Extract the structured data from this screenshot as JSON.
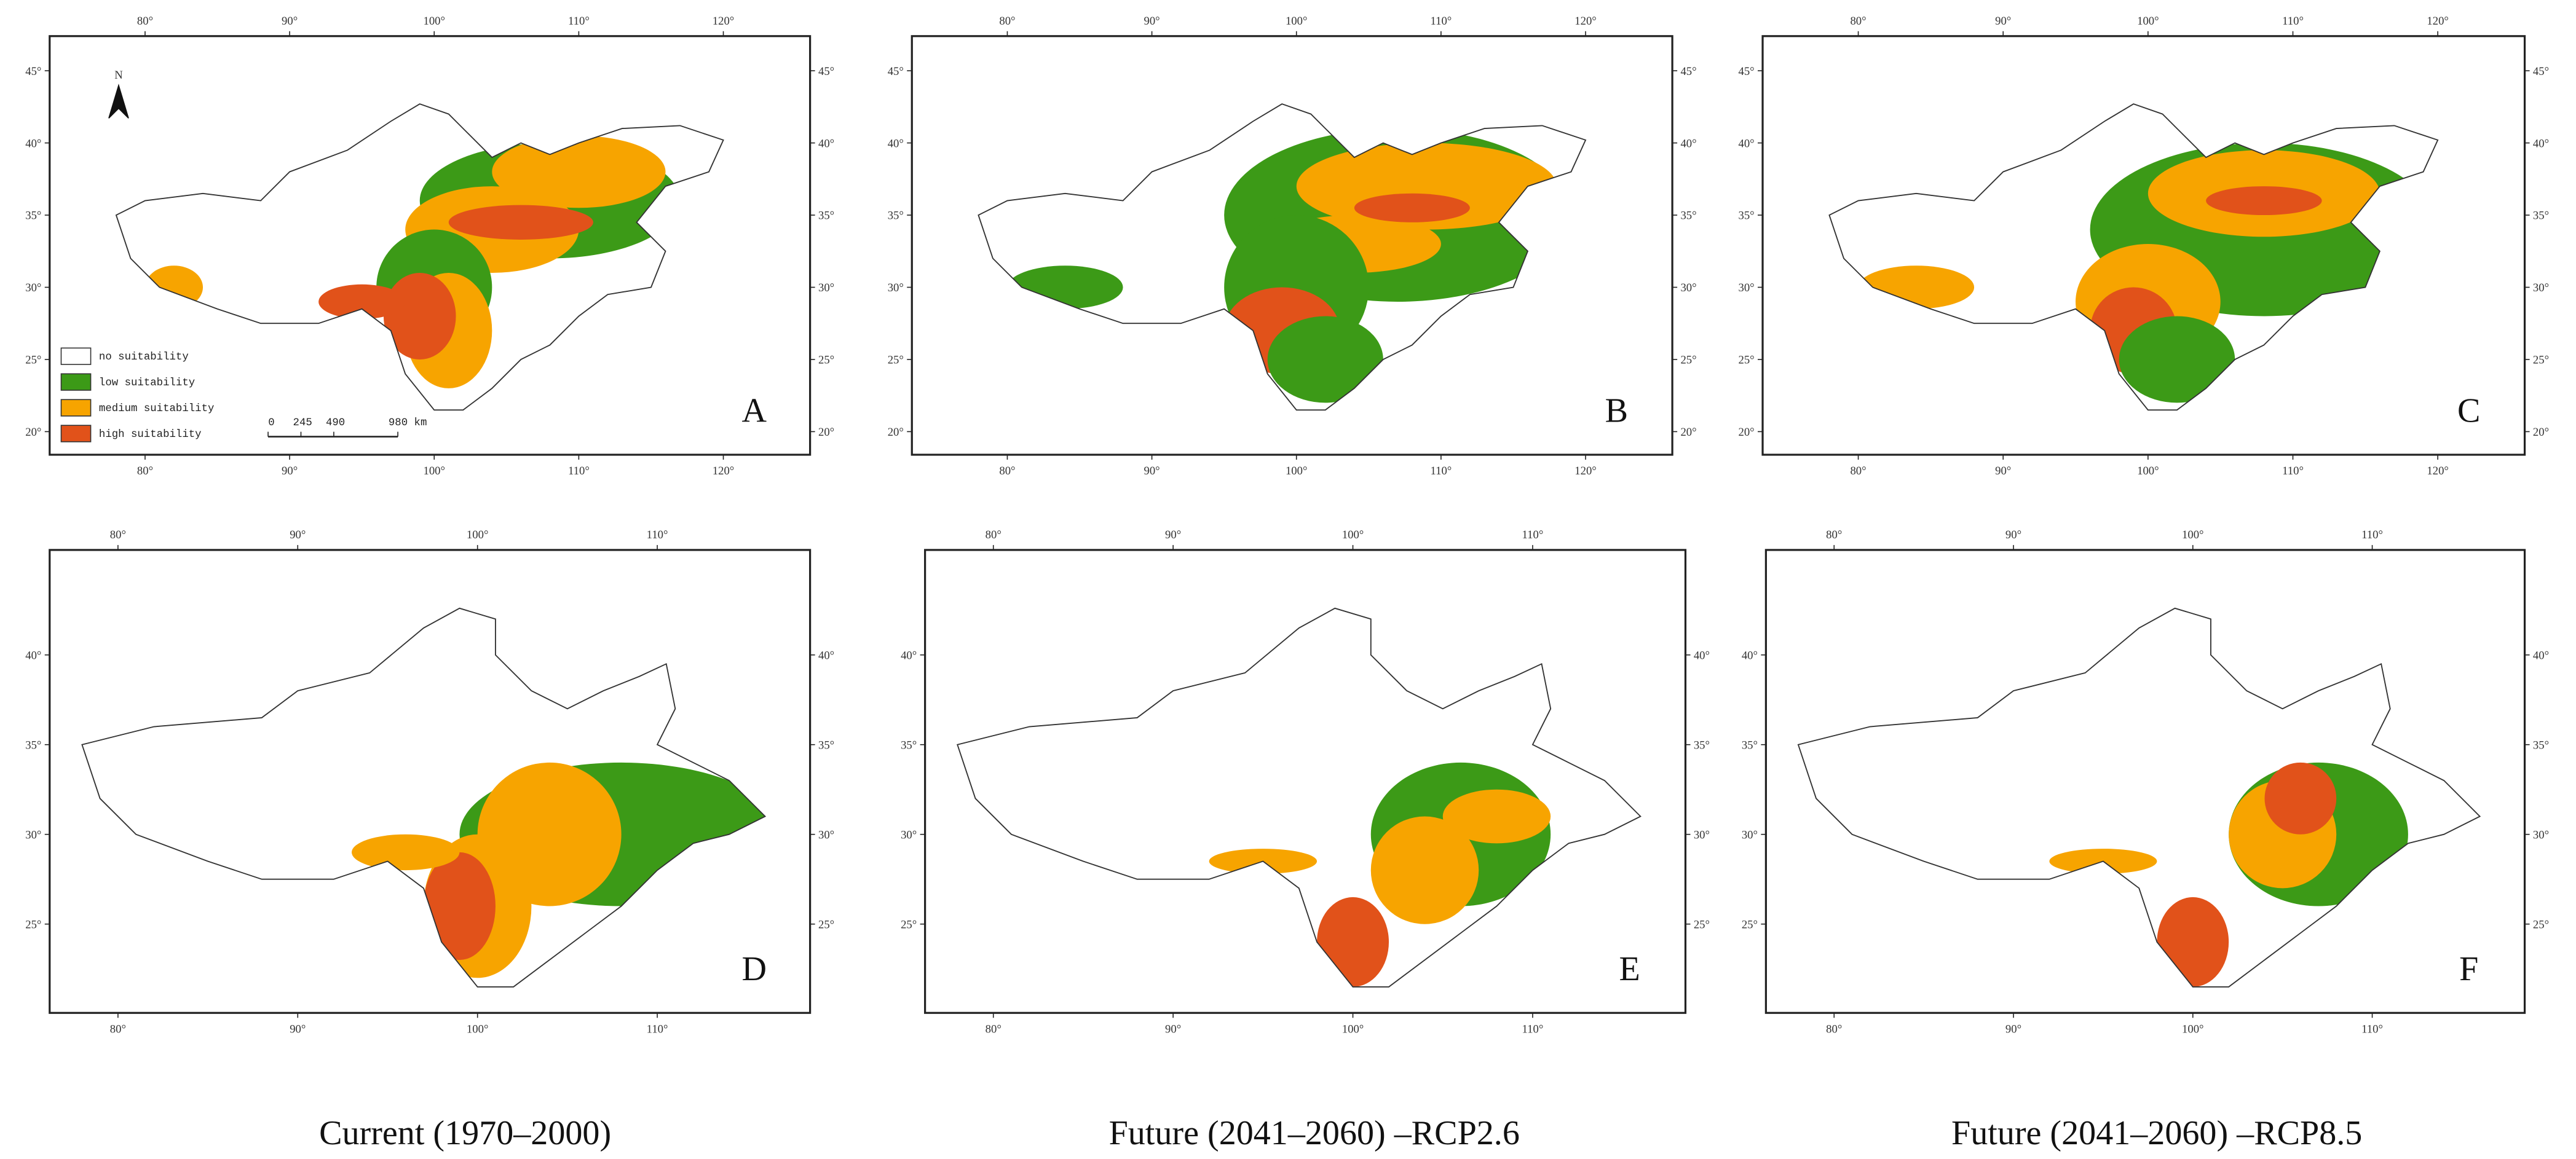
{
  "panels": [
    {
      "letter": "A",
      "xlim": [
        73.4,
        126
      ],
      "ylim": [
        18.4,
        47.4
      ],
      "lon_ticks": [
        {
          "value": 80,
          "label": "80°"
        },
        {
          "value": 90,
          "label": "90°"
        },
        {
          "value": 100,
          "label": "100°"
        },
        {
          "value": 110,
          "label": "110°"
        },
        {
          "value": 120,
          "label": "120°"
        }
      ],
      "lat_ticks": [
        {
          "value": 20,
          "label": "20°"
        },
        {
          "value": 25,
          "label": "25°"
        },
        {
          "value": 30,
          "label": "30°"
        },
        {
          "value": 35,
          "label": "35°"
        },
        {
          "value": 40,
          "label": "40°"
        },
        {
          "value": 45,
          "label": "45°"
        }
      ]
    },
    {
      "letter": "B",
      "xlim": [
        73.4,
        126
      ],
      "ylim": [
        18.4,
        47.4
      ],
      "lon_ticks": [
        {
          "value": 80,
          "label": "80°"
        },
        {
          "value": 90,
          "label": "90°"
        },
        {
          "value": 100,
          "label": "100°"
        },
        {
          "value": 110,
          "label": "110°"
        },
        {
          "value": 120,
          "label": "120°"
        }
      ],
      "lat_ticks": [
        {
          "value": 20,
          "label": "20°"
        },
        {
          "value": 25,
          "label": "25°"
        },
        {
          "value": 30,
          "label": "30°"
        },
        {
          "value": 35,
          "label": "35°"
        },
        {
          "value": 40,
          "label": "40°"
        },
        {
          "value": 45,
          "label": "45°"
        }
      ]
    },
    {
      "letter": "C",
      "xlim": [
        73.4,
        126
      ],
      "ylim": [
        18.4,
        47.4
      ],
      "lon_ticks": [
        {
          "value": 80,
          "label": "80°"
        },
        {
          "value": 90,
          "label": "90°"
        },
        {
          "value": 100,
          "label": "100°"
        },
        {
          "value": 110,
          "label": "110°"
        },
        {
          "value": 120,
          "label": "120°"
        }
      ],
      "lat_ticks": [
        {
          "value": 20,
          "label": "20°"
        },
        {
          "value": 25,
          "label": "25°"
        },
        {
          "value": 30,
          "label": "30°"
        },
        {
          "value": 35,
          "label": "35°"
        },
        {
          "value": 40,
          "label": "40°"
        },
        {
          "value": 45,
          "label": "45°"
        }
      ]
    },
    {
      "letter": "D",
      "xlim": [
        76.2,
        118.5
      ],
      "ylim": [
        20.05,
        45.85
      ],
      "lon_ticks": [
        {
          "value": 80,
          "label": "80°"
        },
        {
          "value": 90,
          "label": "90°"
        },
        {
          "value": 100,
          "label": "100°"
        },
        {
          "value": 110,
          "label": "110°"
        }
      ],
      "lat_ticks": [
        {
          "value": 25,
          "label": "25°"
        },
        {
          "value": 30,
          "label": "30°"
        },
        {
          "value": 35,
          "label": "35°"
        },
        {
          "value": 40,
          "label": "40°"
        }
      ]
    },
    {
      "letter": "E",
      "xlim": [
        76.2,
        118.5
      ],
      "ylim": [
        20.05,
        45.85
      ],
      "lon_ticks": [
        {
          "value": 80,
          "label": "80°"
        },
        {
          "value": 90,
          "label": "90°"
        },
        {
          "value": 100,
          "label": "100°"
        },
        {
          "value": 110,
          "label": "110°"
        }
      ],
      "lat_ticks": [
        {
          "value": 25,
          "label": "25°"
        },
        {
          "value": 30,
          "label": "30°"
        },
        {
          "value": 35,
          "label": "35°"
        },
        {
          "value": 40,
          "label": "40°"
        }
      ]
    },
    {
      "letter": "F",
      "xlim": [
        76.2,
        118.5
      ],
      "ylim": [
        20.05,
        45.85
      ],
      "lon_ticks": [
        {
          "value": 80,
          "label": "80°"
        },
        {
          "value": 90,
          "label": "90°"
        },
        {
          "value": 100,
          "label": "100°"
        },
        {
          "value": 110,
          "label": "110°"
        }
      ],
      "lat_ticks": [
        {
          "value": 25,
          "label": "25°"
        },
        {
          "value": 30,
          "label": "30°"
        },
        {
          "value": 35,
          "label": "35°"
        },
        {
          "value": 40,
          "label": "40°"
        }
      ]
    }
  ],
  "legend": {
    "items": [
      {
        "label": "no suitability",
        "color": "#ffffff"
      },
      {
        "label": "low suitability",
        "color": "#3c9a17"
      },
      {
        "label": "medium suitability",
        "color": "#f7a400"
      },
      {
        "label": "high suitability",
        "color": "#e1521a"
      }
    ]
  },
  "scale_bar": {
    "labels": [
      "0",
      "245",
      "490",
      "980 km"
    ]
  },
  "north": "N",
  "captions": [
    "Current (1970–2000)",
    "Future (2041–2060) –RCP2.6",
    "Future (2041–2060) –RCP8.5"
  ]
}
